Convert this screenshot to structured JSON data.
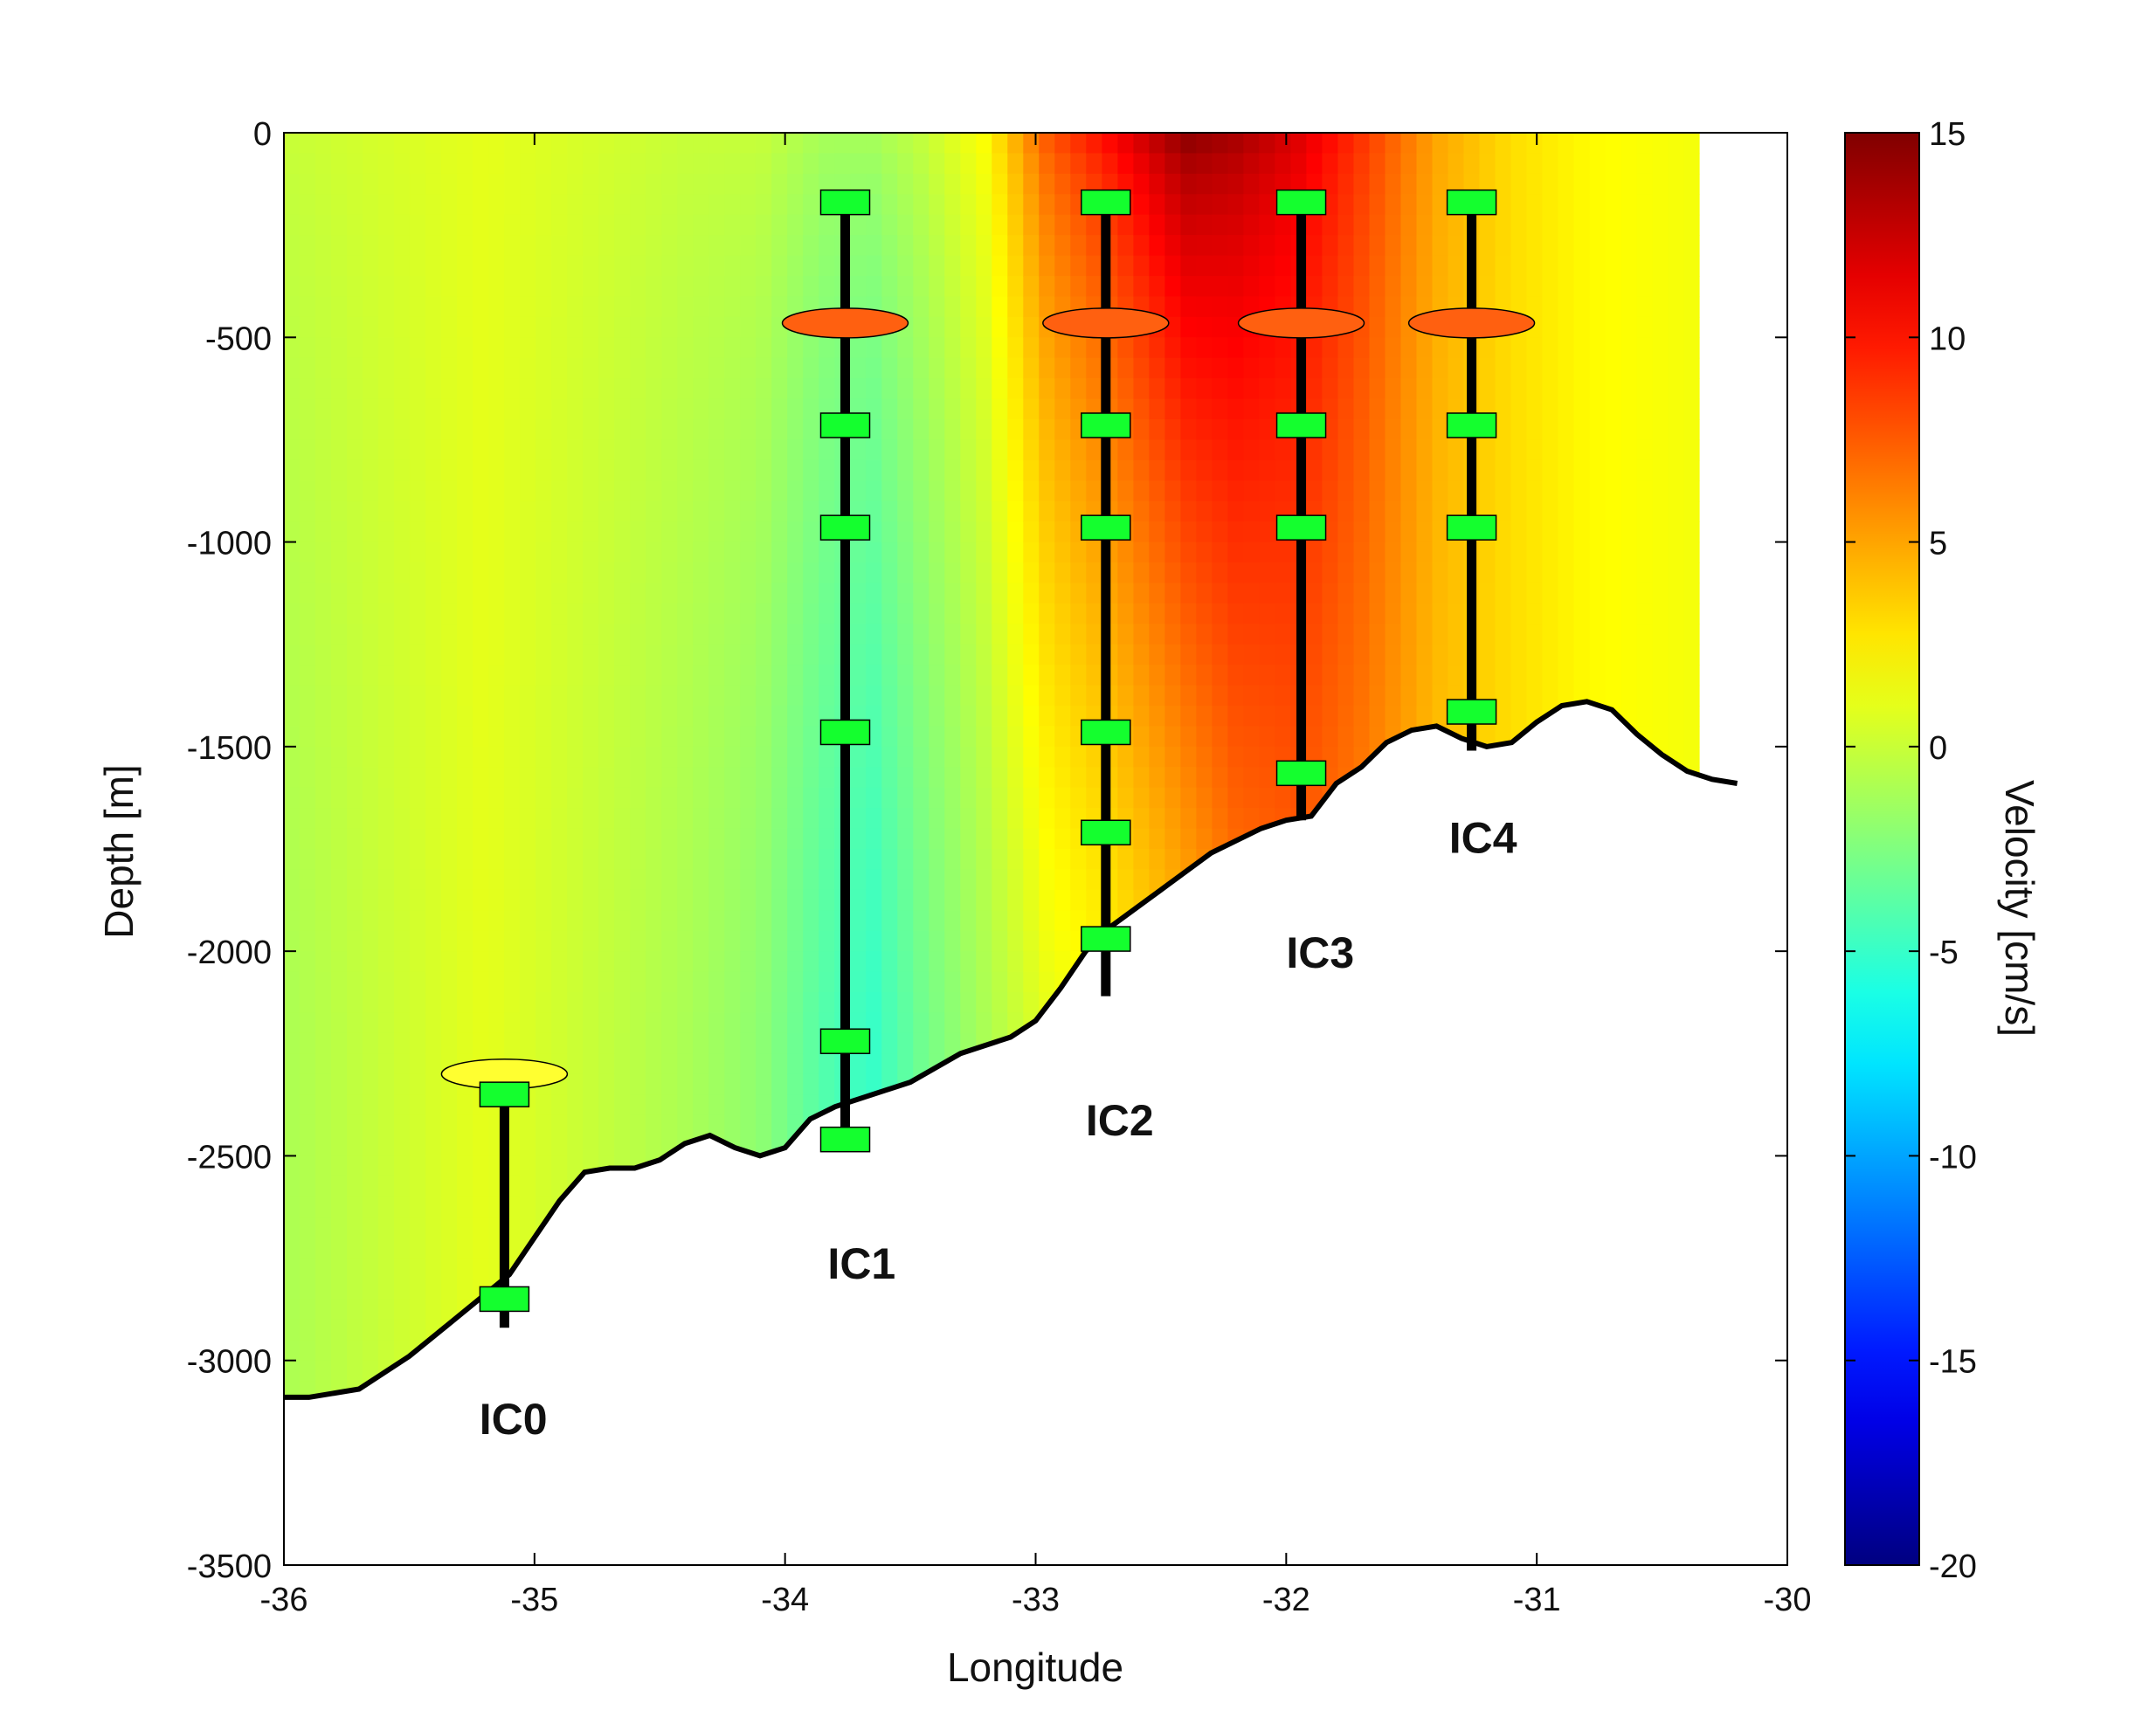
{
  "chart_data": {
    "type": "heatmap",
    "title": "",
    "xlabel": "Longitude",
    "ylabel": "Depth [m]",
    "xlim": [
      -36,
      -30
    ],
    "ylim": [
      -3500,
      0
    ],
    "x_ticks": [
      "-36",
      "-35",
      "-34",
      "-33",
      "-32",
      "-31",
      "-30"
    ],
    "y_ticks": [
      "0",
      "-500",
      "-1000",
      "-1500",
      "-2000",
      "-2500",
      "-3000",
      "-3500"
    ],
    "grid": false,
    "colorbar": {
      "label": "Velocity [cm/s]",
      "range": [
        -20,
        15
      ],
      "ticks": [
        "15",
        "10",
        "5",
        "0",
        "-5",
        "-10",
        "-15",
        "-20"
      ],
      "colormap": "jet"
    },
    "velocity_field": {
      "lon_range": [
        -36,
        -30.35
      ],
      "depth_range": [
        -3100,
        0
      ],
      "profile_points": [
        {
          "lon": -36.0,
          "surface": 0,
          "deep": -1
        },
        {
          "lon": -35.6,
          "surface": 0.5,
          "deep": 0
        },
        {
          "lon": -35.2,
          "surface": 1,
          "deep": 1
        },
        {
          "lon": -34.8,
          "surface": 0.5,
          "deep": 0
        },
        {
          "lon": -34.4,
          "surface": 0,
          "deep": -1
        },
        {
          "lon": -34.1,
          "surface": 0,
          "deep": -2
        },
        {
          "lon": -33.85,
          "surface": -1,
          "deep": -4
        },
        {
          "lon": -33.65,
          "surface": -1,
          "deep": -5
        },
        {
          "lon": -33.45,
          "surface": 0,
          "deep": -3
        },
        {
          "lon": -33.2,
          "surface": 2,
          "deep": -1
        },
        {
          "lon": -32.95,
          "surface": 8,
          "deep": 1
        },
        {
          "lon": -32.7,
          "surface": 11,
          "deep": 2
        },
        {
          "lon": -32.4,
          "surface": 15,
          "deep": 4
        },
        {
          "lon": -32.2,
          "surface": 14,
          "deep": 6
        },
        {
          "lon": -31.95,
          "surface": 12,
          "deep": 7
        },
        {
          "lon": -31.7,
          "surface": 9,
          "deep": 6
        },
        {
          "lon": -31.4,
          "surface": 5,
          "deep": 4
        },
        {
          "lon": -31.1,
          "surface": 3,
          "deep": 3
        },
        {
          "lon": -30.8,
          "surface": 2,
          "deep": 2
        },
        {
          "lon": -30.35,
          "surface": 1.5,
          "deep": 1.5
        }
      ]
    },
    "bathymetry": {
      "lon": [
        -36.0,
        -35.9,
        -35.7,
        -35.5,
        -35.3,
        -35.1,
        -35.0,
        -34.9,
        -34.8,
        -34.7,
        -34.6,
        -34.5,
        -34.4,
        -34.3,
        -34.2,
        -34.1,
        -34.0,
        -33.9,
        -33.8,
        -33.7,
        -33.5,
        -33.3,
        -33.1,
        -33.0,
        -32.9,
        -32.8,
        -32.7,
        -32.5,
        -32.3,
        -32.1,
        -32.0,
        -31.9,
        -31.8,
        -31.7,
        -31.6,
        -31.5,
        -31.4,
        -31.3,
        -31.2,
        -31.1,
        -31.0,
        -30.9,
        -30.8,
        -30.7,
        -30.6,
        -30.5,
        -30.4,
        -30.3,
        -30.2
      ],
      "depth": [
        -3090,
        -3090,
        -3070,
        -2990,
        -2890,
        -2790,
        -2700,
        -2610,
        -2540,
        -2530,
        -2530,
        -2510,
        -2470,
        -2450,
        -2480,
        -2500,
        -2480,
        -2410,
        -2380,
        -2360,
        -2320,
        -2250,
        -2210,
        -2170,
        -2090,
        -2000,
        -1940,
        -1850,
        -1760,
        -1700,
        -1680,
        -1670,
        -1590,
        -1550,
        -1490,
        -1460,
        -1450,
        -1480,
        -1500,
        -1490,
        -1440,
        -1400,
        -1390,
        -1410,
        -1470,
        -1520,
        -1560,
        -1580,
        -1590
      ]
    },
    "moorings": [
      {
        "name": "IC0",
        "lon": -35.12,
        "top": -2350,
        "bottom": -2920,
        "instruments": [
          -2350,
          -2850
        ],
        "float_depth": -2300,
        "float_color": "#ffff30",
        "label_at": [
          -35.22,
          -3180
        ]
      },
      {
        "name": "IC1",
        "lon": -33.76,
        "top": -170,
        "bottom": -2460,
        "instruments": [
          -170,
          -715,
          -965,
          -1465,
          -2220,
          -2460
        ],
        "float_depth": -465,
        "float_color": "#ff6010",
        "label_at": [
          -33.83,
          -2800
        ]
      },
      {
        "name": "IC2",
        "lon": -32.72,
        "top": -170,
        "bottom": -2110,
        "instruments": [
          -170,
          -715,
          -965,
          -1465,
          -1710,
          -1970
        ],
        "float_depth": -465,
        "float_color": "#ff6010",
        "label_at": [
          -32.8,
          -2450
        ]
      },
      {
        "name": "IC3",
        "lon": -31.94,
        "top": -170,
        "bottom": -1680,
        "instruments": [
          -170,
          -715,
          -965,
          -1565
        ],
        "float_depth": -465,
        "float_color": "#ff6010",
        "label_at": [
          -32.0,
          -2040
        ]
      },
      {
        "name": "IC4",
        "lon": -31.26,
        "top": -170,
        "bottom": -1510,
        "instruments": [
          -170,
          -715,
          -965,
          -1415
        ],
        "float_depth": -465,
        "float_color": "#ff6010",
        "label_at": [
          -31.35,
          -1760
        ]
      }
    ]
  }
}
